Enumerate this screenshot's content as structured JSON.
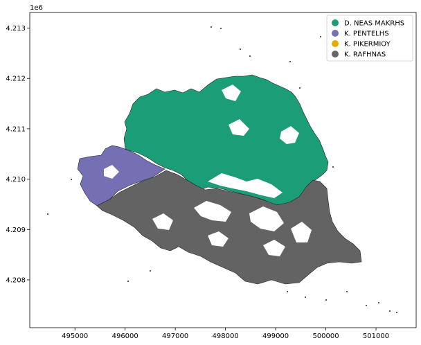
{
  "map": {
    "y_offset_label": "1e6",
    "x_ticks": [
      {
        "value": 495000,
        "label": "495000"
      },
      {
        "value": 496000,
        "label": "496000"
      },
      {
        "value": 497000,
        "label": "497000"
      },
      {
        "value": 498000,
        "label": "498000"
      },
      {
        "value": 499000,
        "label": "499000"
      },
      {
        "value": 500000,
        "label": "500000"
      },
      {
        "value": 501000,
        "label": "501000"
      }
    ],
    "y_ticks": [
      {
        "value": 4208000,
        "label": "4.208"
      },
      {
        "value": 4209000,
        "label": "4.209"
      },
      {
        "value": 4210000,
        "label": "4.210"
      },
      {
        "value": 4211000,
        "label": "4.211"
      },
      {
        "value": 4212000,
        "label": "4.212"
      },
      {
        "value": 4213000,
        "label": "4.213"
      }
    ],
    "x_range": [
      494100,
      501800
    ],
    "y_range": [
      4207050,
      4213310
    ],
    "legend_position": "top-right",
    "legend": [
      {
        "name": "D. NEAS MAKRHS",
        "color": "#1b9e77"
      },
      {
        "name": "K. PENTELHS",
        "color": "#7570b3"
      },
      {
        "name": "K. PIKERMIOY",
        "color": "#e6ab02"
      },
      {
        "name": "K. RAFHNAS",
        "color": "#666666"
      }
    ]
  }
}
